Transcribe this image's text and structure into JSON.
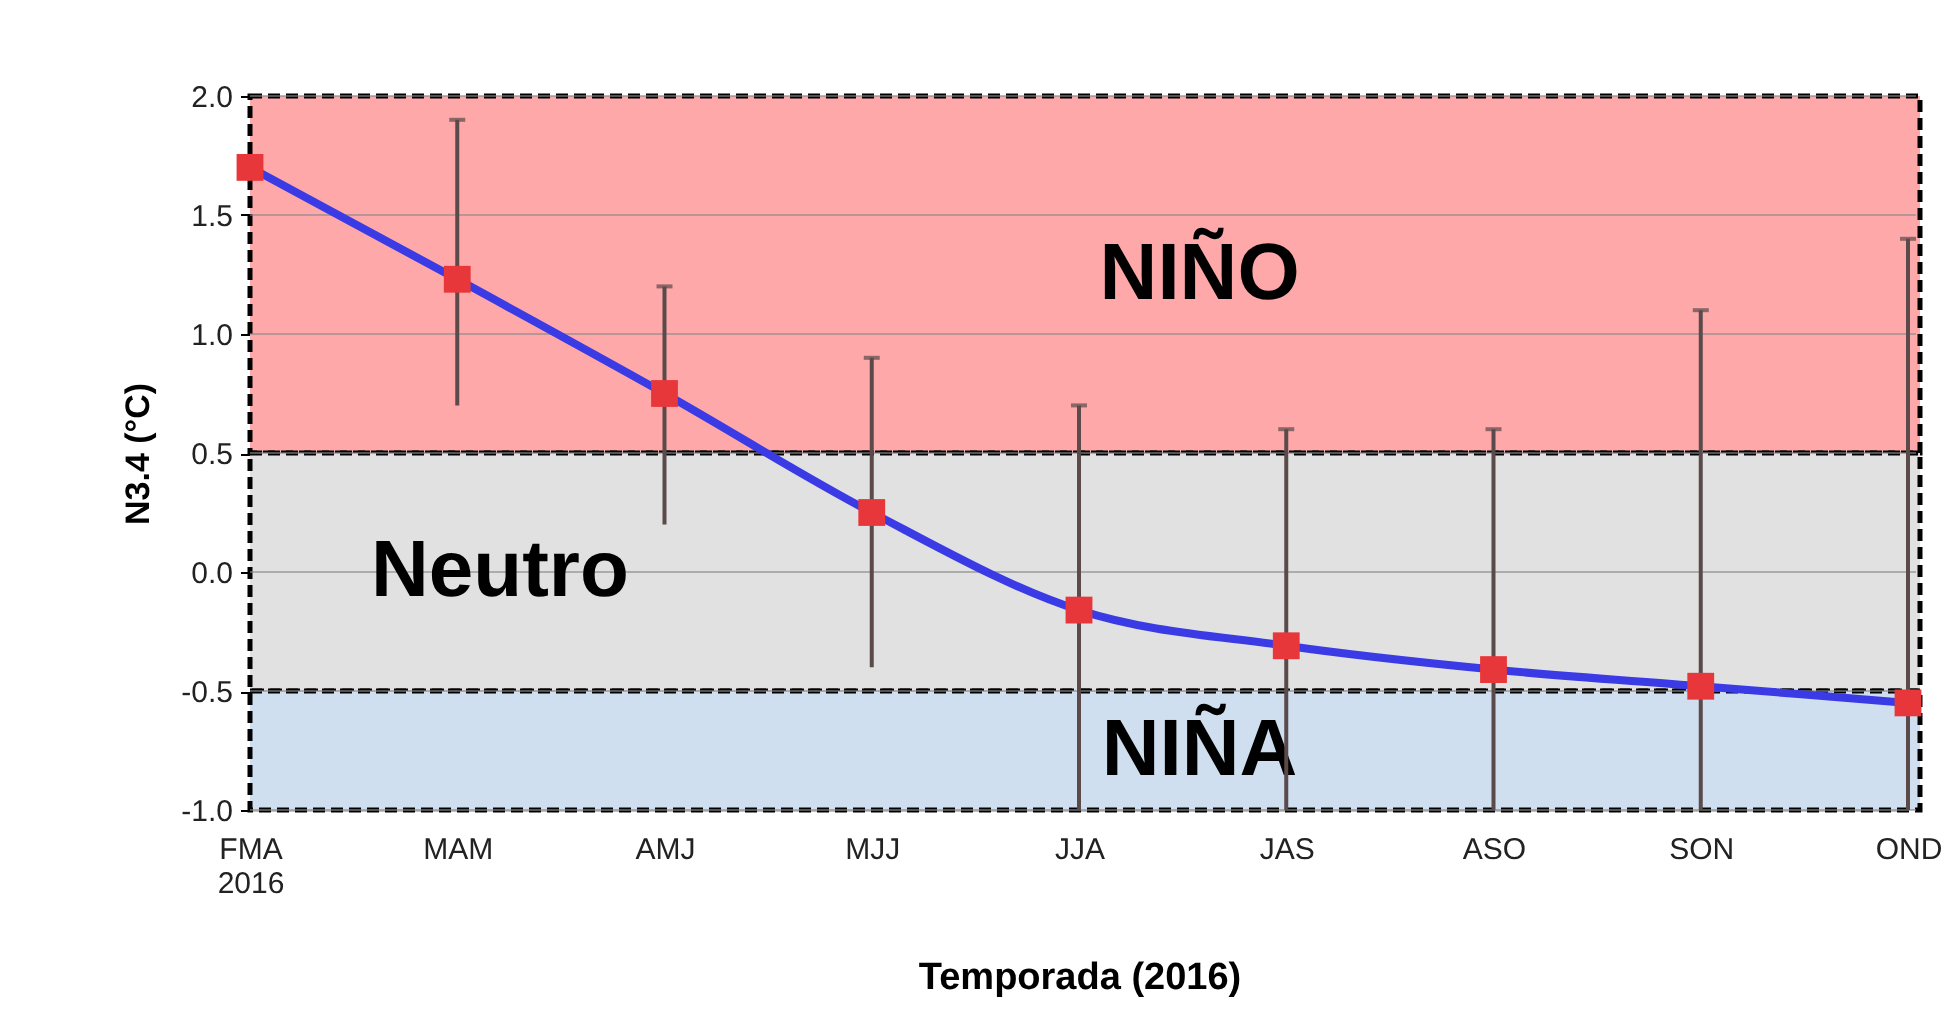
{
  "chart_data": {
    "type": "line",
    "xlabel": "Temporada (2016)",
    "ylabel": "N3.4 (°C)",
    "categories": [
      "FMA\n2016",
      "MAM",
      "AMJ",
      "MJJ",
      "JJA",
      "JAS",
      "ASO",
      "SON",
      "OND"
    ],
    "series": [
      {
        "color": "#3b3be6",
        "values": [
          1.7,
          1.23,
          0.75,
          0.25,
          -0.16,
          -0.31,
          -0.41,
          -0.48,
          -0.55
        ],
        "errors": [
          null,
          [
            0.7,
            1.9
          ],
          [
            0.2,
            1.2
          ],
          [
            -0.4,
            0.9
          ],
          [
            -1.0,
            0.7
          ],
          [
            -1.0,
            0.6
          ],
          [
            -1.0,
            0.6
          ],
          [
            -1.0,
            1.1
          ],
          [
            -1.0,
            1.4
          ]
        ]
      }
    ],
    "ylim": [
      -1.0,
      2.0
    ],
    "yticks": [
      {
        "value": -1,
        "label": "-1.0"
      },
      {
        "value": -0.5,
        "label": "-0.5"
      },
      {
        "value": 0,
        "label": "0.0"
      },
      {
        "value": 0.5,
        "label": "0.5"
      },
      {
        "value": 1,
        "label": "1.0"
      },
      {
        "value": 1.5,
        "label": "1.5"
      },
      {
        "value": 2,
        "label": "2.0"
      }
    ],
    "bands": [
      {
        "axis": "y",
        "from": 0.5,
        "to": 2.0,
        "label": "NIÑO",
        "color": "#ffa8aa"
      },
      {
        "axis": "y",
        "from": -0.5,
        "to": 0.5,
        "label": "Neutro",
        "color": "#e1e1e1"
      },
      {
        "axis": "y",
        "from": -1.0,
        "to": -0.5,
        "label": "NIÑA",
        "color": "#cfdff0"
      }
    ],
    "grid": "y",
    "marker": "square",
    "line_style": "solid"
  }
}
